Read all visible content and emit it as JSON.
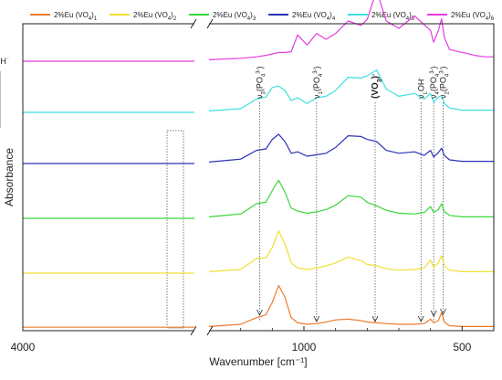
{
  "chart_data": {
    "type": "line",
    "xlabel": "Wavenumber [cm⁻¹]",
    "ylabel": "Absorbance",
    "xlim": [
      4000,
      400
    ],
    "axis_break": [
      3400,
      1300
    ],
    "x_ticks": [
      4000,
      1000,
      500
    ],
    "x_tick_labels": [
      "4000",
      "1000",
      "500"
    ],
    "legend_position": "top",
    "series": [
      {
        "name": "2%Eu (VO4)1",
        "color": "#ee7b2c",
        "offset": 0,
        "x": [
          4000,
          3400,
          1300,
          1200,
          1150,
          1120,
          1100,
          1080,
          1060,
          1040,
          1020,
          990,
          960,
          930,
          900,
          860,
          820,
          800,
          770,
          740,
          700,
          650,
          620,
          600,
          590,
          575,
          565,
          556,
          540,
          500,
          460,
          430,
          400
        ],
        "y": [
          0.01,
          0.01,
          0.02,
          0.05,
          0.14,
          0.18,
          0.35,
          0.58,
          0.42,
          0.14,
          0.07,
          0.05,
          0.06,
          0.08,
          0.11,
          0.12,
          0.1,
          0.08,
          0.07,
          0.06,
          0.05,
          0.05,
          0.06,
          0.12,
          0.07,
          0.1,
          0.21,
          0.08,
          0.03,
          0.02,
          0.02,
          0.02,
          0.02
        ]
      },
      {
        "name": "2%Eu (VO4)2",
        "color": "#f0e034",
        "offset": 0.75,
        "x": [
          4000,
          3400,
          1300,
          1200,
          1150,
          1120,
          1100,
          1080,
          1060,
          1040,
          1020,
          990,
          960,
          930,
          900,
          860,
          820,
          800,
          770,
          740,
          700,
          650,
          620,
          600,
          590,
          575,
          565,
          556,
          540,
          500,
          460,
          430,
          400
        ],
        "y": [
          0.0,
          0.0,
          0.02,
          0.05,
          0.2,
          0.21,
          0.35,
          0.58,
          0.4,
          0.14,
          0.07,
          0.05,
          0.07,
          0.1,
          0.14,
          0.22,
          0.17,
          0.12,
          0.1,
          0.06,
          0.04,
          0.05,
          0.07,
          0.18,
          0.08,
          0.14,
          0.24,
          0.1,
          0.04,
          0.02,
          0.02,
          0.02,
          0.02
        ]
      },
      {
        "name": "2%Eu (VO4)3",
        "color": "#3ad63a",
        "offset": 1.5,
        "x": [
          4000,
          3400,
          1300,
          1200,
          1150,
          1120,
          1100,
          1080,
          1060,
          1040,
          1020,
          990,
          960,
          930,
          900,
          860,
          820,
          800,
          770,
          740,
          700,
          650,
          620,
          600,
          590,
          575,
          565,
          556,
          540,
          500,
          460,
          430,
          400
        ],
        "y": [
          0.0,
          0.0,
          0.02,
          0.06,
          0.2,
          0.22,
          0.38,
          0.52,
          0.36,
          0.14,
          0.1,
          0.07,
          0.09,
          0.12,
          0.18,
          0.31,
          0.29,
          0.22,
          0.17,
          0.11,
          0.07,
          0.06,
          0.08,
          0.16,
          0.08,
          0.12,
          0.2,
          0.09,
          0.04,
          0.02,
          0.02,
          0.02,
          0.02
        ]
      },
      {
        "name": "2%Eu (VO4)4",
        "color": "#2a32b8",
        "offset": 2.25,
        "x": [
          4000,
          3400,
          1300,
          1200,
          1150,
          1120,
          1100,
          1080,
          1060,
          1040,
          1020,
          990,
          960,
          930,
          900,
          860,
          820,
          800,
          770,
          740,
          700,
          650,
          620,
          600,
          590,
          575,
          565,
          556,
          540,
          500,
          460,
          430,
          400
        ],
        "y": [
          0.0,
          0.0,
          0.02,
          0.06,
          0.18,
          0.2,
          0.33,
          0.4,
          0.3,
          0.14,
          0.16,
          0.1,
          0.12,
          0.14,
          0.22,
          0.38,
          0.37,
          0.33,
          0.3,
          0.18,
          0.14,
          0.16,
          0.11,
          0.18,
          0.09,
          0.15,
          0.21,
          0.11,
          0.05,
          0.03,
          0.03,
          0.03,
          0.03
        ]
      },
      {
        "name": "2%Eu (VO4)5",
        "color": "#3fe0e0",
        "offset": 2.95,
        "x": [
          4000,
          3400,
          1300,
          1200,
          1150,
          1120,
          1100,
          1080,
          1060,
          1040,
          1020,
          990,
          960,
          930,
          900,
          860,
          820,
          800,
          770,
          740,
          700,
          650,
          620,
          600,
          590,
          575,
          565,
          556,
          540,
          500,
          460,
          430,
          400
        ],
        "y": [
          0.0,
          0.0,
          0.02,
          0.05,
          0.18,
          0.21,
          0.34,
          0.36,
          0.3,
          0.16,
          0.2,
          0.12,
          0.2,
          0.22,
          0.3,
          0.48,
          0.47,
          0.5,
          0.58,
          0.32,
          0.22,
          0.26,
          0.18,
          0.26,
          0.14,
          0.21,
          0.23,
          0.12,
          0.06,
          0.03,
          0.03,
          0.03,
          0.03
        ]
      },
      {
        "name": "2%Eu (VO4)6",
        "color": "#e23ce0",
        "offset": 3.65,
        "x": [
          4000,
          3400,
          1300,
          1200,
          1150,
          1120,
          1100,
          1080,
          1060,
          1040,
          1020,
          990,
          960,
          930,
          900,
          860,
          820,
          800,
          770,
          740,
          700,
          650,
          620,
          600,
          590,
          575,
          565,
          556,
          540,
          500,
          460,
          430,
          400
        ],
        "y": [
          0.0,
          0.0,
          0.02,
          0.04,
          0.06,
          0.08,
          0.1,
          0.12,
          0.12,
          0.13,
          0.36,
          0.22,
          0.38,
          0.3,
          0.38,
          0.55,
          0.49,
          0.57,
          0.97,
          0.55,
          0.45,
          0.62,
          0.5,
          0.42,
          0.26,
          0.42,
          0.58,
          0.32,
          0.16,
          0.12,
          0.08,
          0.06,
          0.06
        ]
      }
    ],
    "annotations": [
      {
        "label": "νsOH⁻",
        "x": 3300,
        "style": "normal"
      },
      {
        "label": "ν3(PO4³⁻)",
        "x": 1140,
        "style": "normal"
      },
      {
        "label": "ν1(PO4³⁻)",
        "x": 960,
        "style": "normal"
      },
      {
        "label": "(VO3)⁻",
        "x": 775,
        "style": "bold"
      },
      {
        "label": "νLOH⁻",
        "x": 630,
        "style": "normal"
      },
      {
        "label": "ν4(PO4³⁻)",
        "x": 590,
        "style": "normal"
      },
      {
        "label": "ν2(PO4³⁻)",
        "x": 560,
        "style": "normal"
      }
    ]
  }
}
